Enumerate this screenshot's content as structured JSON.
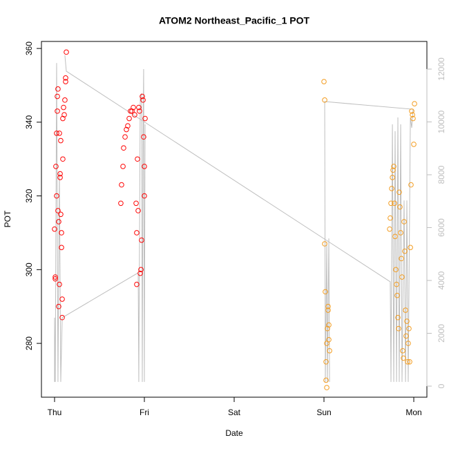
{
  "chart_data": {
    "type": "scatter",
    "title": "ATOM2 Northeast_Pacific_1 POT",
    "xlabel": "Date",
    "ylabel": "POT",
    "xlim": [
      -0.146,
      4.146
    ],
    "ylim": [
      265.4,
      361.9
    ],
    "y2lim": [
      -418,
      13046
    ],
    "xticks": [
      {
        "value": 0,
        "label": "Thu"
      },
      {
        "value": 1,
        "label": "Fri"
      },
      {
        "value": 2,
        "label": "Sat"
      },
      {
        "value": 3,
        "label": "Sun"
      },
      {
        "value": 4,
        "label": "Mon"
      }
    ],
    "yticks": [
      280,
      300,
      320,
      340,
      360
    ],
    "y2ticks": [
      0,
      2000,
      4000,
      6000,
      8000,
      10000,
      12000
    ],
    "series": [
      {
        "type": "line",
        "axis": "y2",
        "color": "#bebebe",
        "x": [
          0,
          0,
          0.008,
          0.023,
          0.038,
          0.054,
          0.069,
          0.085,
          0.931,
          0.938,
          0.954,
          0.969,
          0.977,
          0.985,
          0.992,
          1.0,
          1.008,
          null,
          0.115,
          0.131,
          3.738,
          3.746,
          3.762,
          3.777,
          3.792,
          3.808,
          3.823,
          3.838,
          3.854,
          3.869,
          3.892,
          3.908,
          3.923,
          3.938,
          3.962,
          3.977,
          3.992,
          3.008,
          3.015,
          3.031,
          3.038,
          3.054,
          3.062
        ],
        "values": [
          160,
          2590,
          160,
          12230,
          160,
          8080,
          160,
          2590,
          4290,
          160,
          10950,
          11080,
          160,
          9380,
          12000,
          160,
          9910,
          null,
          12520,
          11920,
          3950,
          160,
          9910,
          160,
          9650,
          160,
          10170,
          160,
          9910,
          160,
          7030,
          160,
          7030,
          160,
          10170,
          9780,
          10480,
          10770,
          160,
          5460,
          160,
          5590,
          160
        ]
      },
      {
        "type": "scatter",
        "color": "#ff0000",
        "x": [
          0,
          0.008,
          0.008,
          0.015,
          0.023,
          0.023,
          0.031,
          0.031,
          0.038,
          0.038,
          0.046,
          0.046,
          0.054,
          0.054,
          0.062,
          0.062,
          0.069,
          0.069,
          0.077,
          0.077,
          0.085,
          0.085,
          0.092,
          0.092,
          0.1,
          0.108,
          0.115,
          0.123,
          0.131,
          0.123,
          0.738,
          0.746,
          0.762,
          0.769,
          0.785,
          0.8,
          0.815,
          0.831,
          0.846,
          0.862,
          0.877,
          0.892,
          0.908,
          0.915,
          0.915,
          0.923,
          0.931,
          0.938,
          0.946,
          0.954,
          0.962,
          0.969,
          0.977,
          0.985,
          0.992,
          1.0,
          1.008,
          1.0
        ],
        "values": [
          311,
          297.5,
          298,
          328,
          337,
          320,
          343,
          347,
          349,
          316,
          290,
          313,
          296,
          337,
          326,
          325,
          335,
          315,
          310,
          306,
          287,
          292,
          341,
          330,
          344,
          342,
          346,
          351,
          359,
          352,
          318,
          323,
          328,
          333,
          336,
          338,
          339,
          341,
          343,
          343,
          344,
          342,
          318,
          310,
          296,
          330,
          316,
          344,
          343,
          299,
          300,
          308,
          347,
          346,
          336,
          320,
          341,
          328
        ]
      },
      {
        "type": "scatter",
        "color": "#f39c1f",
        "x": [
          3.0,
          3.008,
          3.008,
          3.015,
          3.023,
          3.023,
          3.031,
          3.031,
          3.038,
          3.046,
          3.046,
          3.054,
          3.062,
          3.054,
          3.731,
          3.738,
          3.746,
          3.754,
          3.762,
          3.769,
          3.777,
          3.785,
          3.792,
          3.8,
          3.808,
          3.815,
          3.823,
          3.831,
          3.838,
          3.846,
          3.854,
          3.862,
          3.869,
          3.877,
          3.885,
          3.892,
          3.9,
          3.908,
          3.915,
          3.923,
          3.931,
          3.938,
          3.946,
          3.954,
          3.962,
          3.969,
          3.977,
          3.985,
          3.992,
          4.0,
          4.008
        ],
        "values": [
          351,
          346,
          307,
          294,
          270,
          275,
          268,
          280,
          284,
          289,
          290,
          285,
          278,
          281,
          311,
          314,
          318,
          322,
          325,
          327,
          328,
          318,
          309,
          300,
          296,
          293,
          287,
          284,
          321,
          317,
          310,
          303,
          298,
          278,
          276,
          313,
          305,
          289,
          282,
          286,
          275,
          280,
          284,
          275,
          306,
          323,
          343,
          342,
          341,
          334,
          345
        ]
      }
    ]
  }
}
